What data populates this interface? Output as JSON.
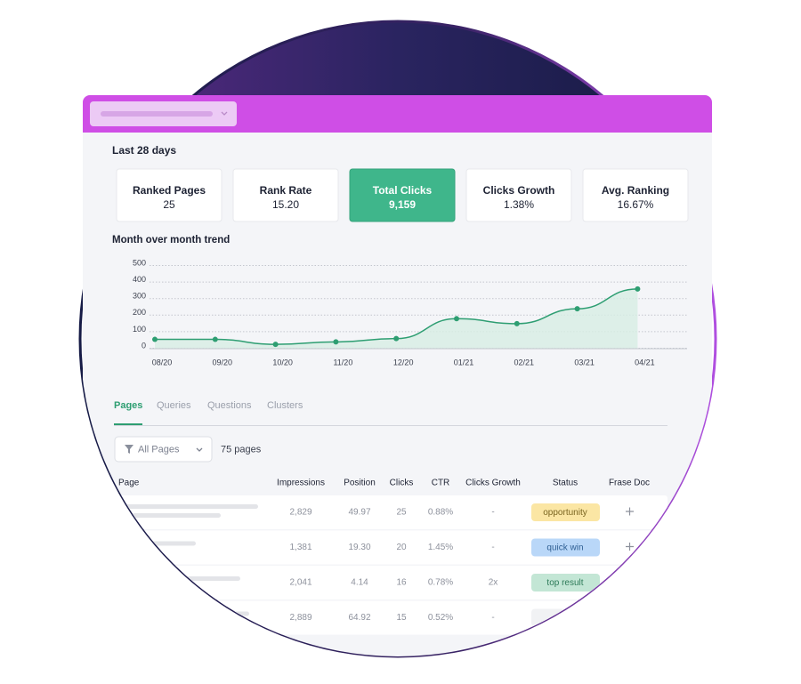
{
  "summary": {
    "period": "Last 28 days",
    "cards": [
      {
        "label": "Ranked Pages",
        "value": "25"
      },
      {
        "label": "Rank Rate",
        "value": "15.20"
      },
      {
        "label": "Total Clicks",
        "value": "9,159"
      },
      {
        "label": "Clicks Growth",
        "value": "1.38%"
      },
      {
        "label": "Avg. Ranking",
        "value": "16.67%"
      }
    ]
  },
  "chart_data": {
    "type": "line",
    "title": "Month over month trend",
    "categories": [
      "08/20",
      "09/20",
      "10/20",
      "11/20",
      "12/20",
      "01/21",
      "02/21",
      "03/21",
      "04/21"
    ],
    "values": [
      40,
      40,
      10,
      25,
      45,
      165,
      135,
      225,
      345
    ],
    "color": "#2e9e72",
    "ylim": [
      0,
      500
    ],
    "yticks": [
      0,
      100,
      200,
      300,
      400,
      500
    ],
    "grid": true
  },
  "tabs": [
    "Pages",
    "Queries",
    "Questions",
    "Clusters"
  ],
  "filter": {
    "label": "All Pages",
    "count": "75 pages"
  },
  "table": {
    "headers": [
      "Page",
      "Impressions",
      "Position",
      "Clicks",
      "CTR",
      "Clicks Growth",
      "Status",
      "Frase Doc"
    ],
    "rows": [
      {
        "impressions": "2,829",
        "position": "49.97",
        "clicks": "25",
        "ctr": "0.88%",
        "growth": "-",
        "status": "opportunity"
      },
      {
        "impressions": "1,381",
        "position": "19.30",
        "clicks": "20",
        "ctr": "1.45%",
        "growth": "-",
        "status": "quick win"
      },
      {
        "impressions": "2,041",
        "position": "4.14",
        "clicks": "16",
        "ctr": "0.78%",
        "growth": "2x",
        "status": "top result"
      },
      {
        "impressions": "2,889",
        "position": "64.92",
        "clicks": "15",
        "ctr": "0.52%",
        "growth": "-"
      }
    ]
  }
}
